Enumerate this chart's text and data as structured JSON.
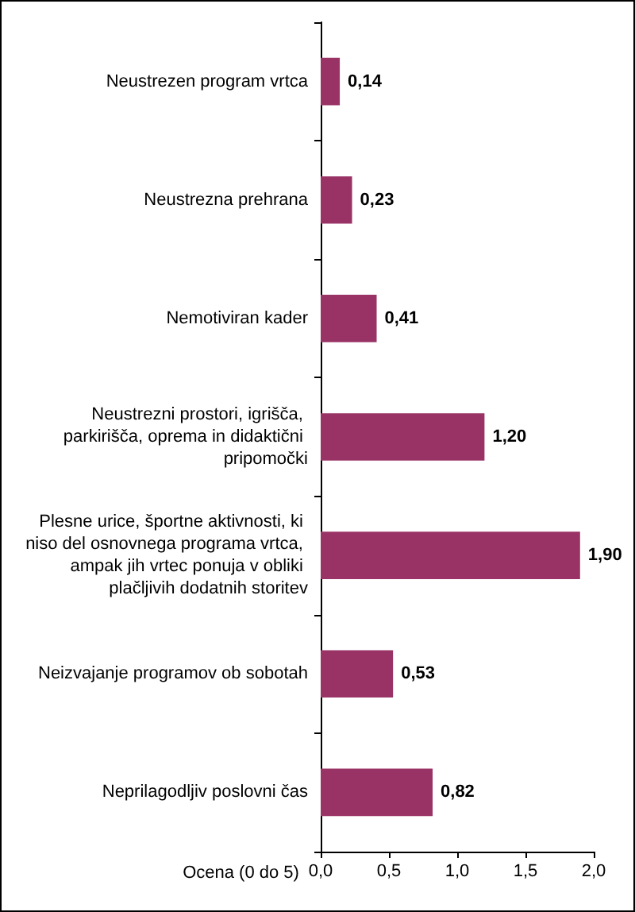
{
  "chart_data": {
    "type": "bar",
    "orientation": "horizontal",
    "categories": [
      "Neustrezen program vrtca",
      "Neustrezna prehrana",
      "Nemotiviran kader",
      "Neustrezni prostori, igrišča, parkirišča, oprema in didaktični pripomočki",
      "Plesne urice, športne aktivnosti, ki niso del osnovnega programa vrtca, ampak jih vrtec ponuja v obliki plačljivih dodatnih storitev",
      "Neizvajanje programov ob sobotah",
      "Neprilagodljiv poslovni čas"
    ],
    "values": [
      0.14,
      0.23,
      0.41,
      1.2,
      1.9,
      0.53,
      0.82
    ],
    "value_labels": [
      "0,14",
      "0,23",
      "0,41",
      "1,20",
      "1,90",
      "0,53",
      "0,82"
    ],
    "color": "#993366",
    "xlabel": "Ocena (0 do 5)",
    "xlim": [
      0,
      2
    ],
    "xticks": [
      {
        "value": 0,
        "label": "0,0"
      },
      {
        "value": 0.5,
        "label": "0,5"
      },
      {
        "value": 1,
        "label": "1,0"
      },
      {
        "value": 1.5,
        "label": "1,5"
      },
      {
        "value": 2,
        "label": "2,0"
      }
    ]
  }
}
